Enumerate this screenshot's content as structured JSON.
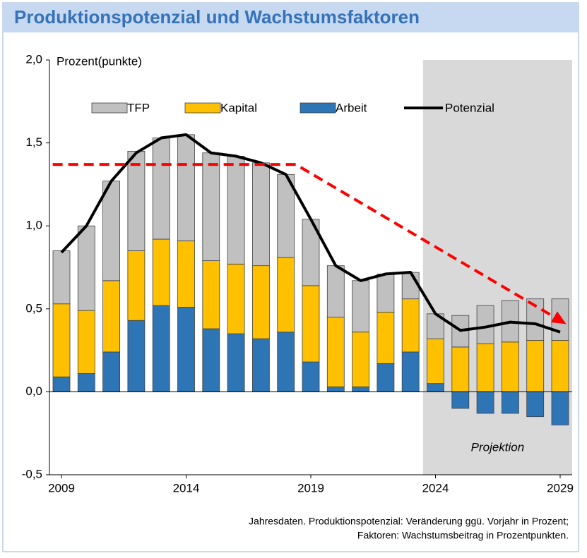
{
  "chart_data": {
    "type": "bar",
    "title": "Produktionspotenzial und Wachstumsfaktoren",
    "y_label": "Prozent(punkte)",
    "categories": [
      "2009",
      null,
      null,
      null,
      null,
      "2014",
      null,
      null,
      null,
      null,
      "2019",
      null,
      null,
      null,
      null,
      "2024",
      null,
      null,
      null,
      null,
      "2029"
    ],
    "series": [
      {
        "name": "TFP",
        "color": "#c0c0c0",
        "values": [
          0.32,
          0.51,
          0.6,
          0.6,
          0.61,
          0.64,
          0.65,
          0.65,
          0.62,
          0.5,
          0.4,
          0.31,
          0.31,
          0.23,
          0.16,
          0.15,
          0.19,
          0.23,
          0.25,
          0.25,
          0.25
        ]
      },
      {
        "name": "Kapital",
        "color": "#ffc000",
        "values": [
          0.44,
          0.38,
          0.43,
          0.42,
          0.4,
          0.4,
          0.41,
          0.42,
          0.44,
          0.45,
          0.46,
          0.42,
          0.33,
          0.31,
          0.32,
          0.27,
          0.27,
          0.29,
          0.3,
          0.31,
          0.31
        ]
      },
      {
        "name": "Arbeit",
        "color": "#2e75b6",
        "values": [
          0.09,
          0.11,
          0.24,
          0.43,
          0.52,
          0.51,
          0.38,
          0.35,
          0.32,
          0.36,
          0.18,
          0.03,
          0.03,
          0.17,
          0.24,
          0.05,
          -0.1,
          -0.13,
          -0.13,
          -0.15,
          -0.2
        ]
      },
      {
        "name": "Potenzial",
        "type": "line",
        "color": "#000000",
        "values": [
          0.84,
          1.0,
          1.27,
          1.44,
          1.53,
          1.55,
          1.44,
          1.42,
          1.38,
          1.31,
          1.04,
          0.76,
          0.67,
          0.71,
          0.72,
          0.47,
          0.37,
          0.39,
          0.42,
          0.41,
          0.36
        ]
      }
    ],
    "trend": {
      "color": "#ff0000",
      "index": [
        -0.35,
        9.4,
        20
      ],
      "values": [
        1.37,
        1.37,
        0.43
      ]
    },
    "projection": {
      "label": "Projektion",
      "start": 15,
      "color": "#d9d9d9"
    },
    "ylim": [
      -0.5,
      2.0
    ],
    "yticks": [
      {
        "value": -0.5,
        "label": "-0,5"
      },
      {
        "value": 0,
        "label": "0,0"
      },
      {
        "value": 0.5,
        "label": "0,5"
      },
      {
        "value": 1.0,
        "label": "1,0"
      },
      {
        "value": 1.5,
        "label": "1,5"
      },
      {
        "value": 2.0,
        "label": "2,0"
      }
    ],
    "footnote": [
      "Jahresdaten. Produktionspotenzial: Veränderung ggü. Vorjahr in Prozent;",
      "Faktoren: Wachstumsbeitrag in Prozentpunkten."
    ]
  }
}
